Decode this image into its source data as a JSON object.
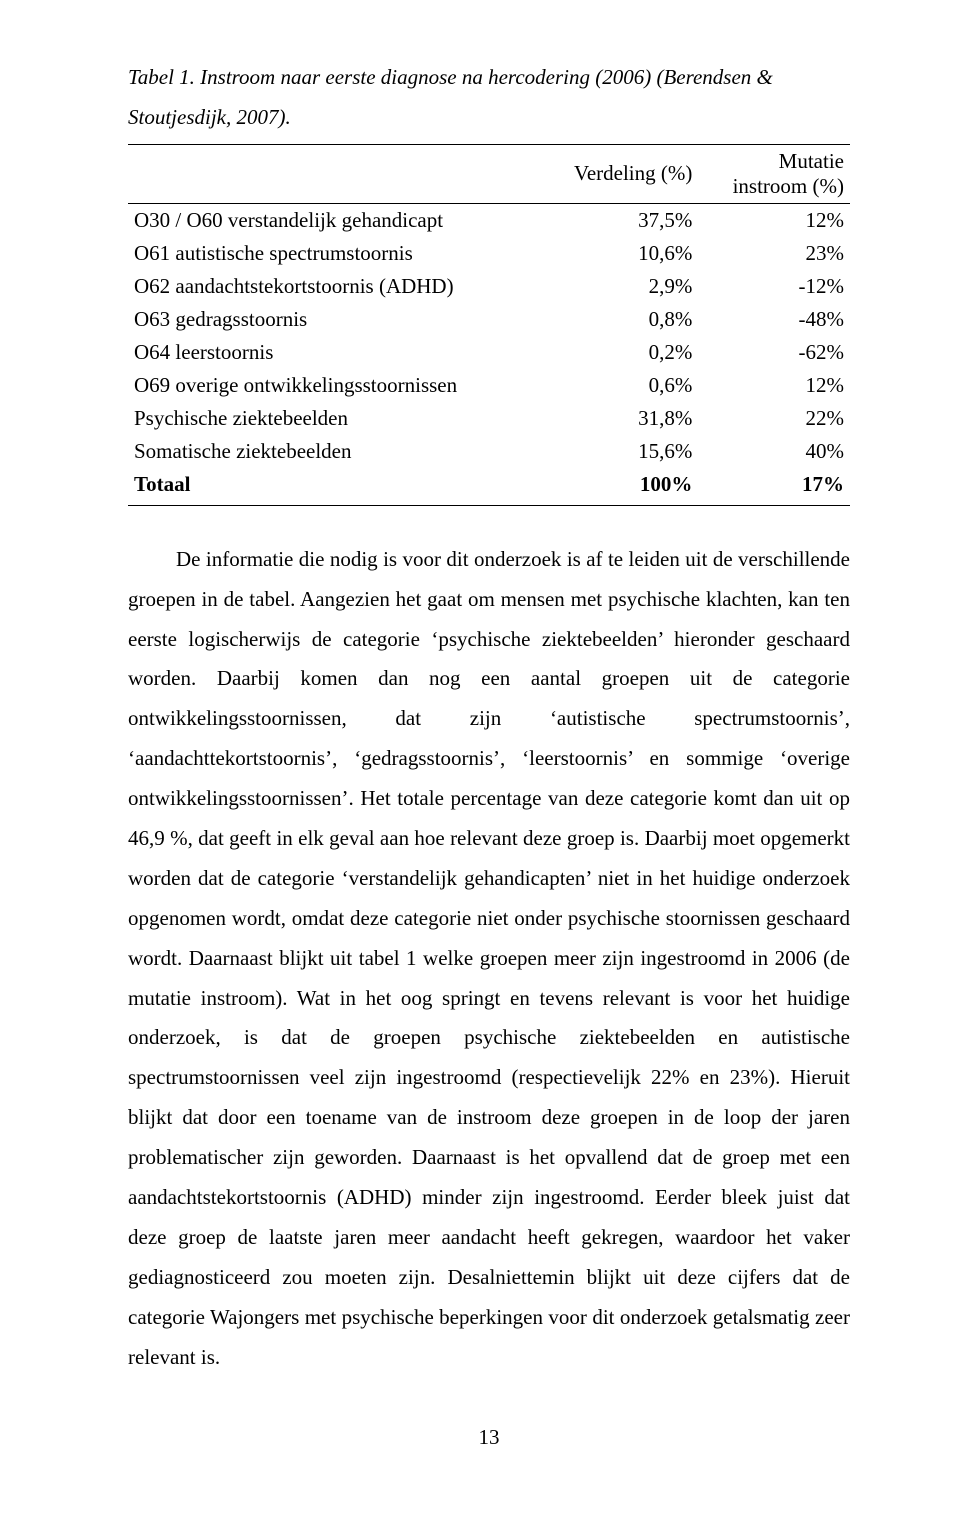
{
  "table": {
    "caption": "Tabel 1. Instroom naar eerste diagnose na hercodering (2006) (Berendsen & Stoutjesdijk, 2007).",
    "columns": {
      "verdeling": "Verdeling (%)",
      "mutatie": "Mutatie instroom (%)"
    },
    "rows": [
      {
        "label": "O30 / O60 verstandelijk gehandicapt",
        "verdeling": "37,5%",
        "mutatie": "12%"
      },
      {
        "label": "O61 autistische spectrumstoornis",
        "verdeling": "10,6%",
        "mutatie": "23%"
      },
      {
        "label": "O62 aandachtstekortstoornis (ADHD)",
        "verdeling": "2,9%",
        "mutatie": "-12%"
      },
      {
        "label": "O63 gedragsstoornis",
        "verdeling": "0,8%",
        "mutatie": "-48%"
      },
      {
        "label": "O64 leerstoornis",
        "verdeling": "0,2%",
        "mutatie": "-62%"
      },
      {
        "label": "O69 overige ontwikkelingsstoornissen",
        "verdeling": "0,6%",
        "mutatie": "12%"
      },
      {
        "label": "Psychische ziektebeelden",
        "verdeling": "31,8%",
        "mutatie": "22%"
      },
      {
        "label": "Somatische ziektebeelden",
        "verdeling": "15,6%",
        "mutatie": "40%"
      }
    ],
    "total": {
      "label": "Totaal",
      "verdeling": "100%",
      "mutatie": "17%"
    }
  },
  "paragraph": "De informatie die nodig is voor dit onderzoek is af te leiden uit de verschillende groepen in de tabel. Aangezien het gaat om mensen met psychische klachten, kan ten eerste logischerwijs de categorie ‘psychische ziektebeelden’ hieronder geschaard worden. Daarbij komen dan nog een aantal groepen uit de categorie ontwikkelingsstoornissen, dat zijn ‘autistische spectrumstoornis’, ‘aandachttekortstoornis’, ‘gedragsstoornis’, ‘leerstoornis’ en sommige ‘overige ontwikkelingsstoornissen’. Het totale percentage van deze categorie komt dan uit op 46,9 %, dat geeft in elk geval aan hoe relevant deze groep is. Daarbij moet opgemerkt worden dat de categorie ‘verstandelijk gehandicapten’ niet in het huidige onderzoek opgenomen wordt, omdat deze categorie niet onder psychische stoornissen geschaard wordt. Daarnaast blijkt uit tabel 1 welke groepen meer zijn ingestroomd in 2006 (de mutatie instroom). Wat in het oog springt en tevens relevant is voor het huidige onderzoek, is dat de groepen psychische ziektebeelden en autistische spectrumstoornissen veel zijn ingestroomd (respectievelijk 22% en 23%). Hieruit blijkt dat door een toename van de instroom deze groepen in de loop der jaren problematischer zijn geworden. Daarnaast is het opvallend dat de groep met een aandachtstekortstoornis (ADHD) minder zijn ingestroomd. Eerder bleek juist dat deze groep de laatste jaren meer aandacht heeft gekregen, waardoor het vaker gediagnosticeerd zou moeten zijn. Desalniettemin blijkt uit deze cijfers dat de categorie Wajongers met psychische beperkingen voor dit onderzoek getalsmatig zeer relevant is.",
  "pageNumber": "13"
}
